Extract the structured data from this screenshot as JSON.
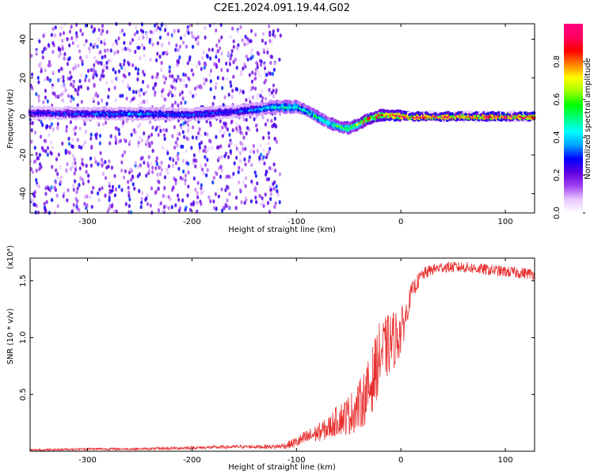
{
  "title": "C2E1.2024.091.19.44.G02",
  "chart_data": [
    {
      "type": "heatmap",
      "name": "spectrogram",
      "xlabel": "Height of straight line (km)",
      "ylabel": "Frequency (Hz)",
      "xlim": [
        -355,
        128
      ],
      "ylim": [
        -50,
        48
      ],
      "xticks": [
        -300,
        -200,
        -100,
        0,
        100
      ],
      "yticks": [
        -40,
        -20,
        0,
        20,
        40
      ],
      "colorbar": {
        "label": "Normalized spectral amplitude",
        "range": [
          0,
          1
        ],
        "ticks": [
          "0.0",
          "0.2",
          "0.4",
          "0.6",
          "0.8"
        ],
        "tick_values": [
          0,
          0.2,
          0.4,
          0.6,
          0.8
        ],
        "colors": [
          "#ffffff",
          "#e8c8ff",
          "#a040f0",
          "#6000e0",
          "#0000ff",
          "#00a0ff",
          "#00ffff",
          "#00ff80",
          "#00ff00",
          "#a0ff00",
          "#ffff00",
          "#ff8000",
          "#ff0000",
          "#ff0060",
          "#ff0080"
        ]
      },
      "ridge": {
        "x": [
          -355,
          -300,
          -250,
          -200,
          -150,
          -120,
          -100,
          -90,
          -80,
          -70,
          -60,
          -50,
          -40,
          -30,
          -20,
          -10,
          0,
          10,
          128
        ],
        "frequency": [
          2,
          1.5,
          1.5,
          1,
          3,
          5,
          5,
          3,
          0,
          -3,
          -5,
          -6,
          -4,
          -1,
          0.5,
          1,
          0.5,
          0,
          0
        ],
        "amplitude": [
          0.25,
          0.3,
          0.35,
          0.3,
          0.3,
          0.45,
          0.45,
          0.45,
          0.5,
          0.5,
          0.55,
          0.6,
          0.65,
          0.75,
          0.8,
          0.85,
          0.9,
          0.92,
          0.92
        ]
      },
      "noise_region": {
        "x": [
          -355,
          -115
        ],
        "intensity": 0.3
      }
    },
    {
      "type": "line",
      "name": "snr",
      "xlabel": "Height of straight line (km)",
      "ylabel": "SNR (10 * v/v)",
      "scale_note": "(x10⁴)",
      "xlim": [
        -355,
        128
      ],
      "ylim": [
        0.0,
        1.7
      ],
      "xticks": [
        -300,
        -200,
        -100,
        0,
        100
      ],
      "yticks": [
        "0.5",
        "1.0",
        "1.5"
      ],
      "ytick_values": [
        0.5,
        1.0,
        1.5
      ],
      "color": "#e83030",
      "x": [
        -355,
        -300,
        -250,
        -200,
        -150,
        -120,
        -110,
        -100,
        -90,
        -80,
        -70,
        -60,
        -50,
        -40,
        -30,
        -25,
        -20,
        -15,
        -10,
        -5,
        0,
        5,
        10,
        20,
        30,
        40,
        60,
        80,
        100,
        128
      ],
      "y": [
        0.01,
        0.02,
        0.02,
        0.03,
        0.04,
        0.04,
        0.05,
        0.08,
        0.12,
        0.16,
        0.2,
        0.28,
        0.32,
        0.4,
        0.55,
        0.7,
        0.85,
        0.9,
        0.95,
        1.0,
        1.05,
        1.2,
        1.4,
        1.55,
        1.6,
        1.62,
        1.62,
        1.6,
        1.58,
        1.56
      ],
      "noise_amplitude": [
        0.01,
        0.01,
        0.01,
        0.015,
        0.015,
        0.02,
        0.03,
        0.05,
        0.07,
        0.08,
        0.1,
        0.14,
        0.18,
        0.22,
        0.28,
        0.3,
        0.3,
        0.28,
        0.28,
        0.25,
        0.22,
        0.12,
        0.08,
        0.06,
        0.05,
        0.05,
        0.05,
        0.05,
        0.05,
        0.05
      ]
    }
  ]
}
